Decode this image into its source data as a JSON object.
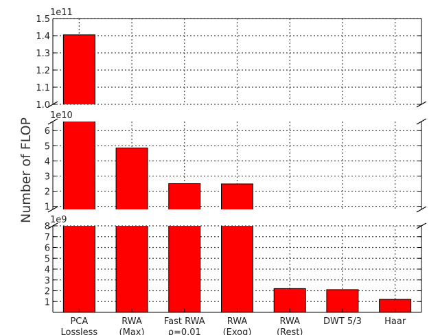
{
  "chart_data": {
    "type": "bar",
    "ylabel": "Number of FLOP",
    "broken_axis": true,
    "grid": true,
    "bar_color": "#ff0000",
    "categories": [
      [
        "PCA",
        "Lossless"
      ],
      [
        "RWA",
        "(Max)"
      ],
      [
        "Fast RWA",
        "ρ=0.01"
      ],
      [
        "RWA",
        "(Exog)"
      ],
      [
        "RWA",
        "(Rest)"
      ],
      [
        "DWT 5/3"
      ],
      [
        "Haar"
      ]
    ],
    "values": [
      140500000000,
      48500000000,
      25000000000,
      24800000000,
      2200000000,
      2100000000,
      1200000000
    ],
    "panels": [
      {
        "multiplier_label": "1e11",
        "scale": 100000000000,
        "ylim": [
          1.0,
          1.5
        ],
        "ticks": [
          1.0,
          1.1,
          1.2,
          1.3,
          1.4,
          1.5
        ],
        "tick_labels": [
          "1.0",
          "1.1",
          "1.2",
          "1.3",
          "1.4",
          "1.5"
        ]
      },
      {
        "multiplier_label": "1e10",
        "scale": 10000000000,
        "ylim": [
          0.8,
          6.6
        ],
        "ticks": [
          1,
          2,
          3,
          4,
          5,
          6
        ],
        "tick_labels": [
          "1",
          "2",
          "3",
          "4",
          "5",
          "6"
        ]
      },
      {
        "multiplier_label": "1e9",
        "scale": 1000000000,
        "ylim": [
          0,
          8
        ],
        "ticks": [
          1,
          2,
          3,
          4,
          5,
          6,
          7,
          8
        ],
        "tick_labels": [
          "1",
          "2",
          "3",
          "4",
          "5",
          "6",
          "7",
          "8"
        ]
      }
    ]
  }
}
